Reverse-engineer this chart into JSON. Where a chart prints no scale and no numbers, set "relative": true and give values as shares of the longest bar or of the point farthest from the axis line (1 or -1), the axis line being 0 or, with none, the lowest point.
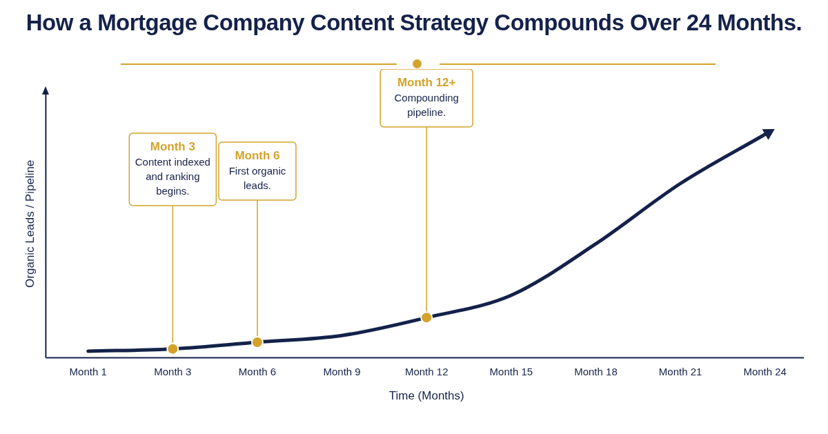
{
  "chart_data": {
    "type": "line",
    "title": "How a Mortgage Company Content Strategy Compounds Over 24 Months.",
    "xlabel": "Time (Months)",
    "ylabel": "Organic Leads / Pipeline",
    "relative": true,
    "grid": false,
    "legend": false,
    "marker": "none",
    "line_style": "solid",
    "categories": [
      "Month 1",
      "Month 3",
      "Month 6",
      "Month 9",
      "Month 12",
      "Month 15",
      "Month 18",
      "Month 21",
      "Month 24"
    ],
    "series": [
      {
        "color": "#14224a",
        "values": [
          0.03,
          0.04,
          0.07,
          0.1,
          0.18,
          0.28,
          0.51,
          0.78,
          1
        ]
      }
    ],
    "annotations": [
      {
        "text": "Month 3\nContent indexed and ranking begins.",
        "x": "Month 3",
        "y": 0.04
      },
      {
        "text": "Month 6\nFirst organic leads.",
        "x": "Month 6",
        "y": 0.07
      },
      {
        "text": "Month 12+\nCompounding pipeline.",
        "x": "Month 12",
        "y": 0.18
      }
    ]
  }
}
